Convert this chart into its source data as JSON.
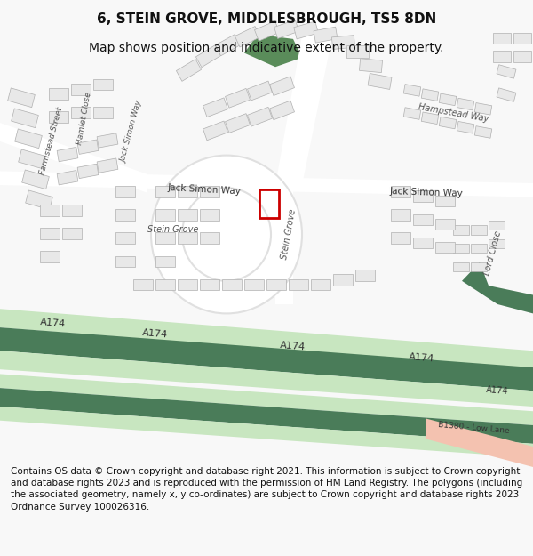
{
  "title": "6, STEIN GROVE, MIDDLESBROUGH, TS5 8DN",
  "subtitle": "Map shows position and indicative extent of the property.",
  "footer": "Contains OS data © Crown copyright and database right 2021. This information is subject to Crown copyright and database rights 2023 and is reproduced with the permission of HM Land Registry. The polygons (including the associated geometry, namely x, y co-ordinates) are subject to Crown copyright and database rights 2023 Ordnance Survey 100026316.",
  "bg_color": "#f8f8f8",
  "map_bg": "#ffffff",
  "road_green_dark": "#4a7c59",
  "road_green_light": "#c8e6c0",
  "road_salmon": "#f4c2b0",
  "building_fill": "#e8e8e8",
  "building_edge": "#b0b0b0",
  "property_color": "#cc0000",
  "title_fontsize": 11,
  "subtitle_fontsize": 10,
  "footer_fontsize": 7.5
}
